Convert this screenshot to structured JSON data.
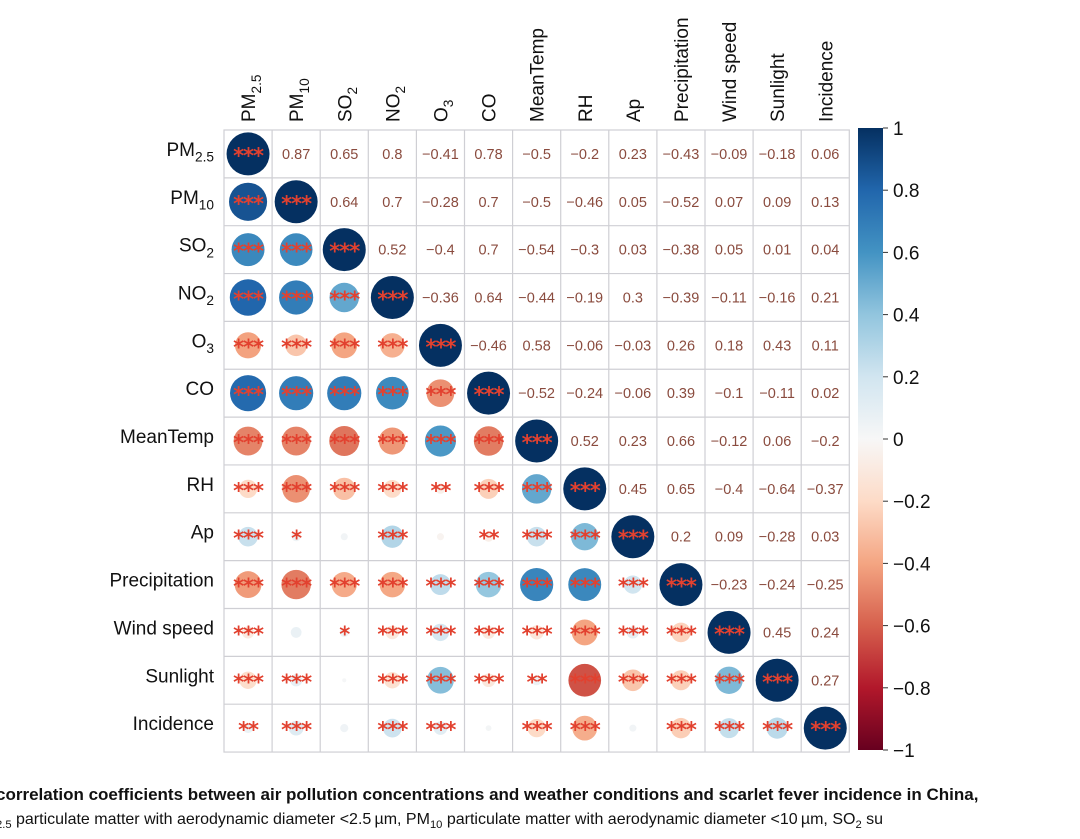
{
  "chart_data": {
    "type": "heatmap",
    "subtype": "correlation-matrix",
    "variables": [
      {
        "text": "PM",
        "sub": "2.5"
      },
      {
        "text": "PM",
        "sub": "10"
      },
      {
        "text": "SO",
        "sub": "2"
      },
      {
        "text": "NO",
        "sub": "2"
      },
      {
        "text": "O",
        "sub": "3"
      },
      {
        "text": "CO",
        "sub": ""
      },
      {
        "text": "MeanTemp",
        "sub": ""
      },
      {
        "text": "RH",
        "sub": ""
      },
      {
        "text": "Ap",
        "sub": ""
      },
      {
        "text": "Precipitation",
        "sub": ""
      },
      {
        "text": "Wind speed",
        "sub": ""
      },
      {
        "text": "Sunlight",
        "sub": ""
      },
      {
        "text": "Incidence",
        "sub": ""
      }
    ],
    "upper_display": "numbers",
    "lower_display": "circles sized and coloured by coefficient, with significance stars",
    "upper_values": [
      [
        1,
        0.87,
        0.65,
        0.8,
        -0.41,
        0.78,
        -0.5,
        -0.2,
        0.23,
        -0.43,
        -0.09,
        -0.18,
        0.06
      ],
      [
        0.64,
        0.7,
        -0.28,
        0.7,
        -0.5,
        -0.46,
        0.05,
        -0.52,
        0.07,
        0.09,
        0.13
      ],
      [
        0.52,
        -0.4,
        0.7,
        -0.54,
        -0.3,
        0.03,
        -0.38,
        0.05,
        0.01,
        0.04
      ],
      [
        -0.36,
        0.64,
        -0.44,
        -0.19,
        0.3,
        -0.39,
        -0.11,
        -0.16,
        0.21
      ],
      [
        -0.46,
        0.58,
        -0.06,
        -0.03,
        0.26,
        0.18,
        0.43,
        0.11
      ],
      [
        -0.52,
        -0.24,
        -0.06,
        0.39,
        -0.1,
        -0.11,
        0.02
      ],
      [
        0.52,
        0.23,
        0.66,
        -0.12,
        0.06,
        -0.2
      ],
      [
        0.45,
        0.65,
        -0.4,
        -0.64,
        -0.37
      ],
      [
        0.2,
        0.09,
        -0.28,
        0.03
      ],
      [
        -0.23,
        -0.24,
        -0.25
      ],
      [
        0.45,
        0.24
      ],
      [
        0.27
      ]
    ],
    "significance_lower": [
      [
        "***"
      ],
      [
        "***",
        "***"
      ],
      [
        "***",
        "***",
        "***"
      ],
      [
        "***",
        "***",
        "***",
        "***"
      ],
      [
        "***",
        "***",
        "***",
        "***",
        "***"
      ],
      [
        "***",
        "***",
        "***",
        "***",
        "***",
        "***"
      ],
      [
        "***",
        "***",
        "***",
        "***",
        "**",
        "***",
        "***"
      ],
      [
        "***",
        "*",
        "",
        "***",
        "",
        "**",
        "***",
        "***"
      ],
      [
        "***",
        "***",
        "***",
        "***",
        "***",
        "***",
        "***",
        "***",
        "***"
      ],
      [
        "***",
        "",
        "*",
        "***",
        "***",
        "***",
        "***",
        "***",
        "***",
        "***"
      ],
      [
        "***",
        "***",
        "",
        "***",
        "***",
        "***",
        "**",
        "***",
        "***",
        "***",
        "***"
      ],
      [
        "**",
        "***",
        "",
        "***",
        "***",
        "",
        "***",
        "***",
        "",
        "***",
        "***",
        "***"
      ]
    ],
    "diagonal_significance": "***",
    "colorbar": {
      "range": [
        -1,
        1
      ],
      "ticks": [
        "1",
        "0.8",
        "0.6",
        "0.4",
        "0.2",
        "0",
        "−0.2",
        "−0.4",
        "−0.6",
        "−0.8",
        "−1"
      ],
      "colormap": "RdBu",
      "stops": [
        "#67001f",
        "#b2182b",
        "#d6604d",
        "#f4a582",
        "#fddbc7",
        "#f7f7f7",
        "#d1e5f0",
        "#92c5de",
        "#4393c3",
        "#2166ac",
        "#053061"
      ]
    },
    "colors": {
      "number_text": "#8a4b3e",
      "stars": "#e2412f",
      "grid": "#cfcfd4"
    }
  },
  "caption": {
    "line1": "correlation coefficients between air pollution concentrations and weather conditions and scarlet fever incidence in China,",
    "line2_a": "2.5",
    "line2_b": " particulate matter with aerodynamic diameter <2.5 µm, PM",
    "line2_c": "10",
    "line2_d": " particulate matter with aerodynamic diameter <10 µm, SO",
    "line2_e": "2",
    "line2_f": " su"
  }
}
